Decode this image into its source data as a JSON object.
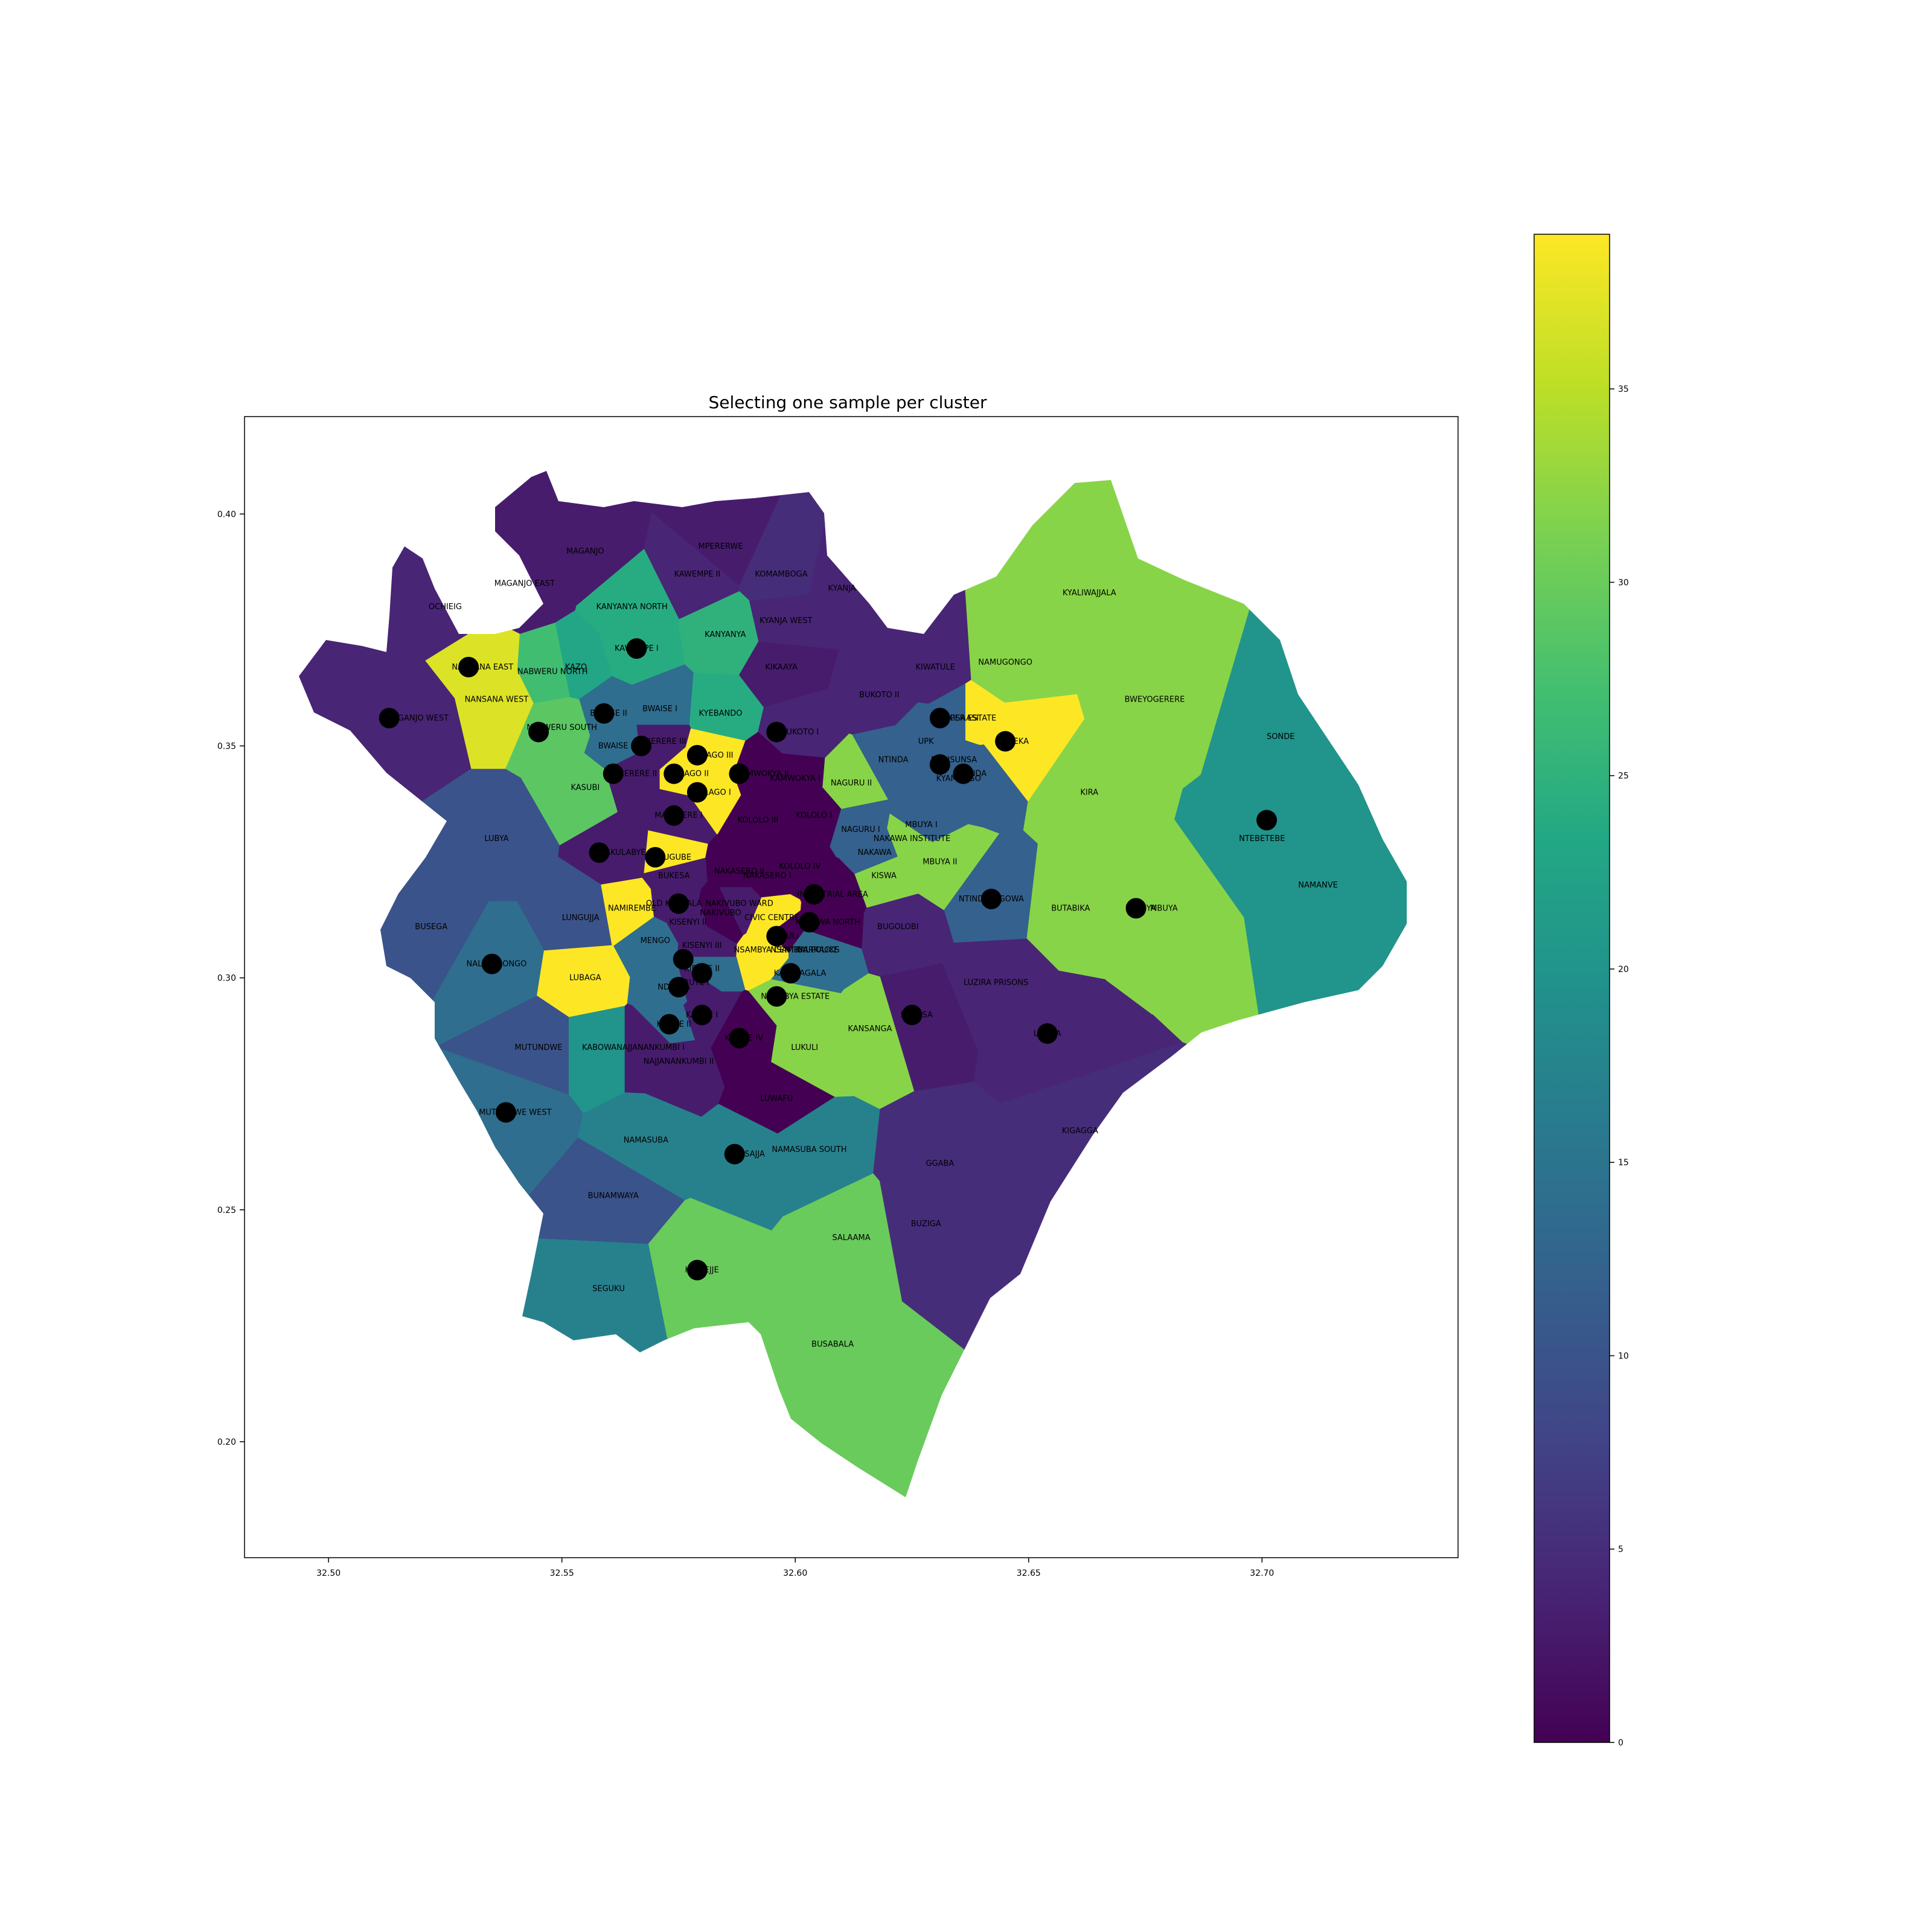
{
  "title": "Selecting one sample per cluster",
  "chart_data": {
    "type": "choropleth-map",
    "title": "Selecting one sample per cluster",
    "xlabel": "",
    "ylabel": "",
    "xlim": [
      32.482,
      32.742
    ],
    "ylim": [
      0.175,
      0.421
    ],
    "x_ticks": [
      "32.50",
      "32.55",
      "32.60",
      "32.65",
      "32.70"
    ],
    "y_ticks": [
      "0.20",
      "0.25",
      "0.30",
      "0.35",
      "0.40"
    ],
    "colorbar": {
      "colormap": "viridis",
      "range": [
        0,
        39
      ],
      "ticks": [
        "0",
        "5",
        "10",
        "15",
        "20",
        "25",
        "30",
        "35"
      ]
    },
    "regions": [
      {
        "name": "MAGANJO",
        "lon": 32.555,
        "lat": 0.392,
        "value": 3
      },
      {
        "name": "MPERERWE",
        "lon": 32.584,
        "lat": 0.393,
        "value": 3
      },
      {
        "name": "KAWEMPE II",
        "lon": 32.579,
        "lat": 0.387,
        "value": 4
      },
      {
        "name": "KOMAMBOGA",
        "lon": 32.597,
        "lat": 0.387,
        "value": 5
      },
      {
        "name": "KYEBANDO",
        "lon": 32.584,
        "lat": 0.357,
        "value": 24
      },
      {
        "name": "KYANJA",
        "lon": 32.61,
        "lat": 0.384,
        "value": 4
      },
      {
        "name": "OCHIEIG",
        "lon": 32.525,
        "lat": 0.38,
        "value": 4
      },
      {
        "name": "KANYANYA",
        "lon": 32.585,
        "lat": 0.374,
        "value": 25
      },
      {
        "name": "KAWEMPE I",
        "lon": 32.566,
        "lat": 0.371,
        "value": 24
      },
      {
        "name": "KIKAAYA",
        "lon": 32.597,
        "lat": 0.367,
        "value": 3
      },
      {
        "name": "KIWATULE",
        "lon": 32.63,
        "lat": 0.367,
        "value": 4
      },
      {
        "name": "NANSANA EAST",
        "lon": 32.533,
        "lat": 0.367,
        "value": 37
      },
      {
        "name": "KAZO",
        "lon": 32.553,
        "lat": 0.367,
        "value": 23
      },
      {
        "name": "NABWERU NORTH",
        "lon": 32.548,
        "lat": 0.366,
        "value": 27
      },
      {
        "name": "BUKOTO II",
        "lon": 32.618,
        "lat": 0.361,
        "value": 4
      },
      {
        "name": "NANSANA WEST",
        "lon": 32.536,
        "lat": 0.36,
        "value": 37
      },
      {
        "name": "KYALIWAJJALA",
        "lon": 32.663,
        "lat": 0.383,
        "value": 32
      },
      {
        "name": "BWEYOGERERE",
        "lon": 32.677,
        "lat": 0.36,
        "value": 32
      },
      {
        "name": "MAGANJO WEST",
        "lon": 32.519,
        "lat": 0.356,
        "value": 4
      },
      {
        "name": "BWAISE II",
        "lon": 32.56,
        "lat": 0.357,
        "value": 14
      },
      {
        "name": "BWAISE I",
        "lon": 32.571,
        "lat": 0.358,
        "value": 14
      },
      {
        "name": "NABWERU SOUTH",
        "lon": 32.55,
        "lat": 0.354,
        "value": 29
      },
      {
        "name": "KISAASI",
        "lon": 32.636,
        "lat": 0.356,
        "value": 12
      },
      {
        "name": "UPPER ESTATE",
        "lon": 32.637,
        "lat": 0.356,
        "value": 39
      },
      {
        "name": "BUKOTO I",
        "lon": 32.601,
        "lat": 0.353,
        "value": 4
      },
      {
        "name": "NTINDA",
        "lon": 32.621,
        "lat": 0.347,
        "value": 12
      },
      {
        "name": "UPK",
        "lon": 32.628,
        "lat": 0.351,
        "value": 12
      },
      {
        "name": "KIREKA",
        "lon": 32.647,
        "lat": 0.351,
        "value": 39
      },
      {
        "name": "BWAISE III",
        "lon": 32.562,
        "lat": 0.35,
        "value": 14
      },
      {
        "name": "MAKERERE III",
        "lon": 32.571,
        "lat": 0.351,
        "value": 3
      },
      {
        "name": "MULAGO III",
        "lon": 32.582,
        "lat": 0.348,
        "value": 39
      },
      {
        "name": "NABISUNSA",
        "lon": 32.634,
        "lat": 0.347,
        "value": 12
      },
      {
        "name": "KASUBI",
        "lon": 32.555,
        "lat": 0.341,
        "value": 29
      },
      {
        "name": "MAKERERE II",
        "lon": 32.565,
        "lat": 0.344,
        "value": 3
      },
      {
        "name": "MULAGO II",
        "lon": 32.577,
        "lat": 0.344,
        "value": 39
      },
      {
        "name": "MULAGO I",
        "lon": 32.582,
        "lat": 0.34,
        "value": 39
      },
      {
        "name": "KAMWOKYA II",
        "lon": 32.593,
        "lat": 0.344,
        "value": 0
      },
      {
        "name": "KAMWOKYA I",
        "lon": 32.6,
        "lat": 0.343,
        "value": 0
      },
      {
        "name": "NAGURU II",
        "lon": 32.612,
        "lat": 0.342,
        "value": 32
      },
      {
        "name": "KYAMBOGO",
        "lon": 32.635,
        "lat": 0.343,
        "value": 12
      },
      {
        "name": "BANDA",
        "lon": 32.638,
        "lat": 0.344,
        "value": 12
      },
      {
        "name": "LUBYA",
        "lon": 32.536,
        "lat": 0.33,
        "value": 10
      },
      {
        "name": "MAKERERE I",
        "lon": 32.575,
        "lat": 0.335,
        "value": 3
      },
      {
        "name": "KOLOLO I",
        "lon": 32.604,
        "lat": 0.335,
        "value": 0
      },
      {
        "name": "KOLOLO III",
        "lon": 32.592,
        "lat": 0.334,
        "value": 0
      },
      {
        "name": "NAGURU I",
        "lon": 32.614,
        "lat": 0.332,
        "value": 12
      },
      {
        "name": "MBUYA I",
        "lon": 32.627,
        "lat": 0.333,
        "value": 12
      },
      {
        "name": "NAKAWA INSTITUTE",
        "lon": 32.625,
        "lat": 0.33,
        "value": 32
      },
      {
        "name": "NAKULABYE",
        "lon": 32.563,
        "lat": 0.327,
        "value": 3
      },
      {
        "name": "KAGUGUBE",
        "lon": 32.573,
        "lat": 0.326,
        "value": 39
      },
      {
        "name": "NAKAWA",
        "lon": 32.617,
        "lat": 0.327,
        "value": 12
      },
      {
        "name": "MBUYA II",
        "lon": 32.631,
        "lat": 0.325,
        "value": 32
      },
      {
        "name": "KOLOLO IV",
        "lon": 32.601,
        "lat": 0.324,
        "value": 0
      },
      {
        "name": "NAKASERO II",
        "lon": 32.588,
        "lat": 0.323,
        "value": 0
      },
      {
        "name": "NAKASERO I",
        "lon": 32.594,
        "lat": 0.322,
        "value": 0
      },
      {
        "name": "BUKESA",
        "lon": 32.574,
        "lat": 0.322,
        "value": 3
      },
      {
        "name": "KISWA",
        "lon": 32.619,
        "lat": 0.322,
        "value": 32
      },
      {
        "name": "INDUSTRIAL AREA",
        "lon": 32.608,
        "lat": 0.318,
        "value": 0
      },
      {
        "name": "NTINDA-KIGOWA",
        "lon": 32.642,
        "lat": 0.317,
        "value": 12
      },
      {
        "name": "BUTABIKA",
        "lon": 32.659,
        "lat": 0.315,
        "value": 32
      },
      {
        "name": "BUSEGA",
        "lon": 32.522,
        "lat": 0.311,
        "value": 10
      },
      {
        "name": "LUNGUJJA",
        "lon": 32.554,
        "lat": 0.313,
        "value": 10
      },
      {
        "name": "NAMIREMBE",
        "lon": 32.565,
        "lat": 0.315,
        "value": 39
      },
      {
        "name": "OLD KAMPALA",
        "lon": 32.574,
        "lat": 0.316,
        "value": 3
      },
      {
        "name": "CIVIC CENTRE",
        "lon": 32.595,
        "lat": 0.313,
        "value": 39
      },
      {
        "name": "KIBULI",
        "lon": 32.598,
        "lat": 0.309,
        "value": 0
      },
      {
        "name": "MBUYA",
        "lon": 32.679,
        "lat": 0.315,
        "value": 32
      },
      {
        "name": "NAKIVUBO",
        "lon": 32.584,
        "lat": 0.314,
        "value": 0
      },
      {
        "name": "BUGOLOBI",
        "lon": 32.622,
        "lat": 0.311,
        "value": 4
      },
      {
        "name": "NAKIVUBO WARD",
        "lon": 32.588,
        "lat": 0.316,
        "value": 3
      },
      {
        "name": "KABOWA NORTH",
        "lon": 32.607,
        "lat": 0.312,
        "value": 0
      },
      {
        "name": "MENGO",
        "lon": 32.57,
        "lat": 0.308,
        "value": 14
      },
      {
        "name": "KISENYI II",
        "lon": 32.577,
        "lat": 0.312,
        "value": 3
      },
      {
        "name": "NSAMBYA POLICE",
        "lon": 32.602,
        "lat": 0.306,
        "value": 14
      },
      {
        "name": "KISENYI III",
        "lon": 32.58,
        "lat": 0.307,
        "value": 3
      },
      {
        "name": "NSAMBYA CENTRAL",
        "lon": 32.595,
        "lat": 0.306,
        "value": 39
      },
      {
        "name": "BARRACKS",
        "lon": 32.605,
        "lat": 0.306,
        "value": 14
      },
      {
        "name": "KIBUYE II",
        "lon": 32.58,
        "lat": 0.302,
        "value": 14
      },
      {
        "name": "NALUKOLONGO",
        "lon": 32.536,
        "lat": 0.303,
        "value": 14
      },
      {
        "name": "KABALAGALA",
        "lon": 32.601,
        "lat": 0.301,
        "value": 14
      },
      {
        "name": "LUZIRA PRISONS",
        "lon": 32.643,
        "lat": 0.299,
        "value": 4
      },
      {
        "name": "LUBAGA",
        "lon": 32.555,
        "lat": 0.3,
        "value": 39
      },
      {
        "name": "NDEEBA",
        "lon": 32.574,
        "lat": 0.298,
        "value": 14
      },
      {
        "name": "KIBUYE I",
        "lon": 32.578,
        "lat": 0.299,
        "value": 3
      },
      {
        "name": "NSAMBYA ESTATE",
        "lon": 32.6,
        "lat": 0.296,
        "value": 32
      },
      {
        "name": "BUKASA",
        "lon": 32.626,
        "lat": 0.292,
        "value": 3
      },
      {
        "name": "KATWE I",
        "lon": 32.58,
        "lat": 0.292,
        "value": 3
      },
      {
        "name": "KANSANGA",
        "lon": 32.616,
        "lat": 0.289,
        "value": 32
      },
      {
        "name": "LUZIRA",
        "lon": 32.654,
        "lat": 0.288,
        "value": 4
      },
      {
        "name": "KATWE II",
        "lon": 32.574,
        "lat": 0.29,
        "value": 14
      },
      {
        "name": "KIBUYE IV",
        "lon": 32.589,
        "lat": 0.287,
        "value": 0
      },
      {
        "name": "MUTUNDWE",
        "lon": 32.545,
        "lat": 0.285,
        "value": 10
      },
      {
        "name": "KABOWA",
        "lon": 32.558,
        "lat": 0.285,
        "value": 20
      },
      {
        "name": "NAJJANANKUMBI I",
        "lon": 32.569,
        "lat": 0.285,
        "value": 3
      },
      {
        "name": "LUKULI",
        "lon": 32.602,
        "lat": 0.285,
        "value": 32
      },
      {
        "name": "NAJJANANKUMBI II",
        "lon": 32.575,
        "lat": 0.282,
        "value": 3
      },
      {
        "name": "MUTUNDWE WEST",
        "lon": 32.54,
        "lat": 0.271,
        "value": 14
      },
      {
        "name": "LUWAFU",
        "lon": 32.596,
        "lat": 0.274,
        "value": 0
      },
      {
        "name": "NAMASUBA",
        "lon": 32.568,
        "lat": 0.265,
        "value": 17
      },
      {
        "name": "GGABA",
        "lon": 32.631,
        "lat": 0.26,
        "value": 5
      },
      {
        "name": "MASAJJA",
        "lon": 32.59,
        "lat": 0.262,
        "value": 17
      },
      {
        "name": "BUNAMWAYA",
        "lon": 32.561,
        "lat": 0.253,
        "value": 10
      },
      {
        "name": "BUZIGA",
        "lon": 32.628,
        "lat": 0.247,
        "value": 5
      },
      {
        "name": "SALAAMA",
        "lon": 32.612,
        "lat": 0.244,
        "value": 30
      },
      {
        "name": "KIGAGGA",
        "lon": 32.661,
        "lat": 0.267,
        "value": 5
      },
      {
        "name": "NAMASUBA SOUTH",
        "lon": 32.603,
        "lat": 0.263,
        "value": 17
      },
      {
        "name": "KYETEJJE",
        "lon": 32.58,
        "lat": 0.237,
        "value": 30
      },
      {
        "name": "SEGUKU",
        "lon": 32.56,
        "lat": 0.233,
        "value": 17
      },
      {
        "name": "BUSABALA",
        "lon": 32.608,
        "lat": 0.221,
        "value": 30
      },
      {
        "name": "KIRINYA",
        "lon": 32.674,
        "lat": 0.315,
        "value": 32
      },
      {
        "name": "NAMUGONGO",
        "lon": 32.645,
        "lat": 0.368,
        "value": 32
      },
      {
        "name": "KIRA",
        "lon": 32.663,
        "lat": 0.34,
        "value": 32
      },
      {
        "name": "SONDE",
        "lon": 32.704,
        "lat": 0.352,
        "value": 20
      },
      {
        "name": "NTEBETEBE",
        "lon": 32.7,
        "lat": 0.33,
        "value": 20
      },
      {
        "name": "NAMANVE",
        "lon": 32.712,
        "lat": 0.32,
        "value": 20
      },
      {
        "name": "KYANJA WEST",
        "lon": 32.598,
        "lat": 0.377,
        "value": 4
      },
      {
        "name": "KANYANYA NORTH",
        "lon": 32.565,
        "lat": 0.38,
        "value": 24
      },
      {
        "name": "MAGANJO EAST",
        "lon": 32.542,
        "lat": 0.385,
        "value": 3
      }
    ],
    "samples": [
      {
        "name": "NANSANA EAST",
        "lon": 32.53,
        "lat": 0.367
      },
      {
        "name": "KAWEMPE I",
        "lon": 32.566,
        "lat": 0.371
      },
      {
        "name": "MAGANJO WEST",
        "lon": 32.513,
        "lat": 0.356
      },
      {
        "name": "BWAISE II",
        "lon": 32.559,
        "lat": 0.357
      },
      {
        "name": "NABWERU SOUTH",
        "lon": 32.545,
        "lat": 0.353
      },
      {
        "name": "BWAISE III",
        "lon": 32.567,
        "lat": 0.35
      },
      {
        "name": "BUKOTO I",
        "lon": 32.596,
        "lat": 0.353
      },
      {
        "name": "UPPER ESTATE",
        "lon": 32.631,
        "lat": 0.356
      },
      {
        "name": "KIREKA",
        "lon": 32.645,
        "lat": 0.351
      },
      {
        "name": "NABISUNSA",
        "lon": 32.631,
        "lat": 0.346
      },
      {
        "name": "BANDA",
        "lon": 32.636,
        "lat": 0.344
      },
      {
        "name": "MULAGO III",
        "lon": 32.579,
        "lat": 0.348
      },
      {
        "name": "MAKERERE II",
        "lon": 32.561,
        "lat": 0.344
      },
      {
        "name": "MULAGO II",
        "lon": 32.574,
        "lat": 0.344
      },
      {
        "name": "KAMWOKYA II",
        "lon": 32.588,
        "lat": 0.344
      },
      {
        "name": "MULAGO I",
        "lon": 32.579,
        "lat": 0.34
      },
      {
        "name": "MAKERERE I",
        "lon": 32.574,
        "lat": 0.335
      },
      {
        "name": "NAKULABYE",
        "lon": 32.558,
        "lat": 0.327
      },
      {
        "name": "KAGUGUBE",
        "lon": 32.57,
        "lat": 0.326
      },
      {
        "name": "INDUSTRIAL AREA",
        "lon": 32.604,
        "lat": 0.318
      },
      {
        "name": "NTINDA-KIGOWA",
        "lon": 32.642,
        "lat": 0.317
      },
      {
        "name": "MBUYA",
        "lon": 32.673,
        "lat": 0.315
      },
      {
        "name": "OLD KAMPALA",
        "lon": 32.575,
        "lat": 0.316
      },
      {
        "name": "KABOWA NORTH",
        "lon": 32.603,
        "lat": 0.312
      },
      {
        "name": "KIBULI",
        "lon": 32.596,
        "lat": 0.309
      },
      {
        "name": "NALUKOLONGO",
        "lon": 32.535,
        "lat": 0.303
      },
      {
        "name": "KISENYI III",
        "lon": 32.576,
        "lat": 0.304
      },
      {
        "name": "KIBUYE II",
        "lon": 32.58,
        "lat": 0.301
      },
      {
        "name": "KABALAGALA",
        "lon": 32.599,
        "lat": 0.301
      },
      {
        "name": "NDEEBA",
        "lon": 32.575,
        "lat": 0.298
      },
      {
        "name": "NSAMBYA ESTATE",
        "lon": 32.596,
        "lat": 0.296
      },
      {
        "name": "KATWE I",
        "lon": 32.58,
        "lat": 0.292
      },
      {
        "name": "BUKASA",
        "lon": 32.625,
        "lat": 0.292
      },
      {
        "name": "KATWE II",
        "lon": 32.573,
        "lat": 0.29
      },
      {
        "name": "LUZIRA",
        "lon": 32.654,
        "lat": 0.288
      },
      {
        "name": "KIBUYE IV",
        "lon": 32.588,
        "lat": 0.287
      },
      {
        "name": "MUTUNDWE WEST",
        "lon": 32.538,
        "lat": 0.271
      },
      {
        "name": "MASAJJA",
        "lon": 32.587,
        "lat": 0.262
      },
      {
        "name": "KYETEJJE",
        "lon": 32.579,
        "lat": 0.237
      },
      {
        "name": "NAMUGONGO",
        "lon": 32.701,
        "lat": 0.334
      }
    ]
  }
}
